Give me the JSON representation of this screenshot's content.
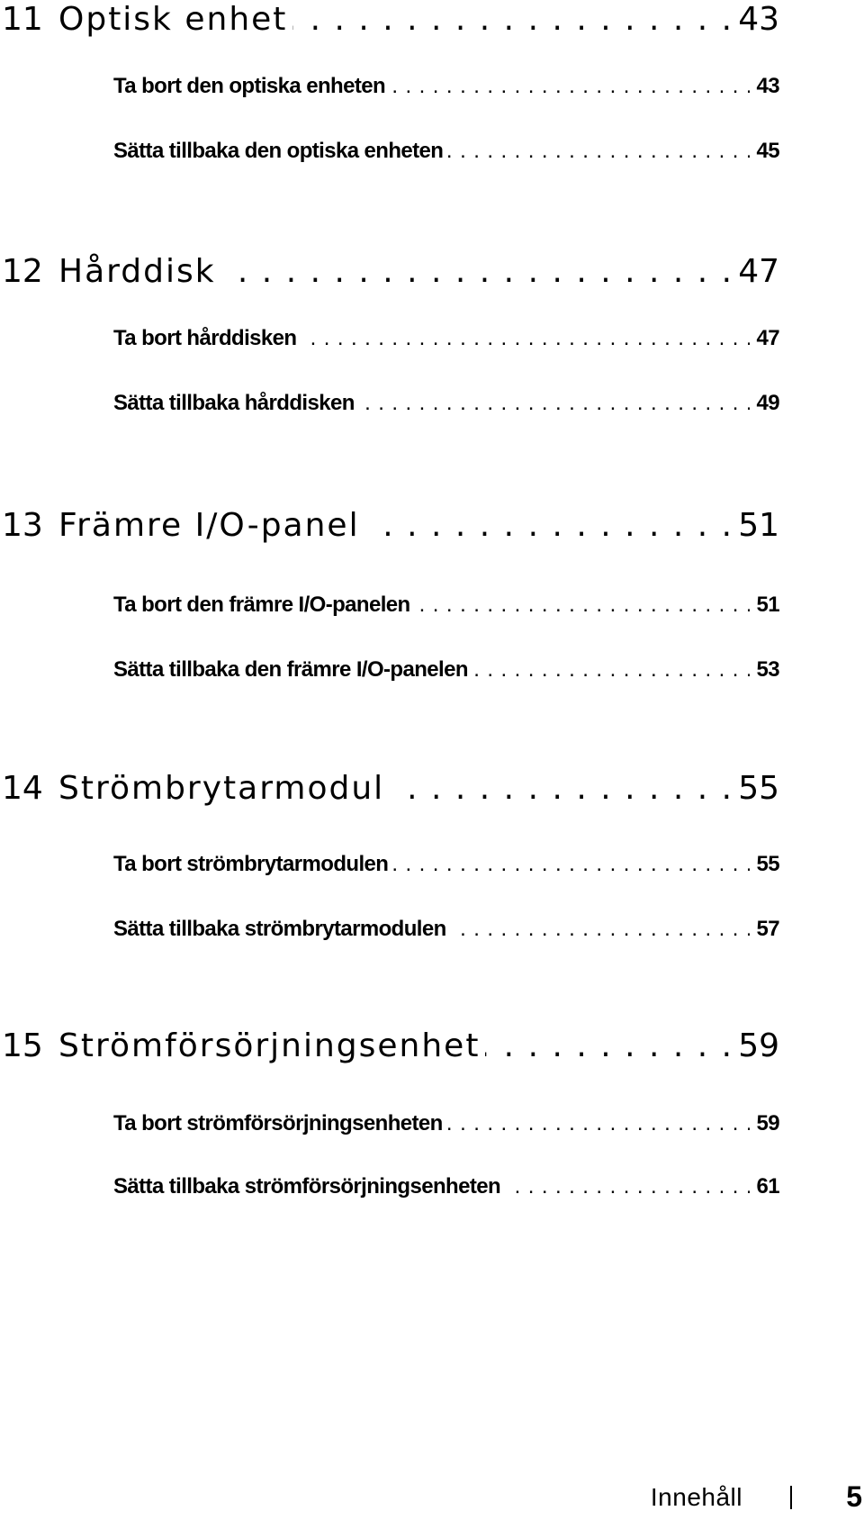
{
  "toc": {
    "chapters": [
      {
        "number": "11",
        "title": "Optisk enhet",
        "page": "43",
        "sections": [
          {
            "title": "Ta bort den optiska enheten",
            "page": "43"
          },
          {
            "title": "Sätta tillbaka den optiska enheten",
            "page": "45"
          }
        ]
      },
      {
        "number": "12",
        "title": "Hårddisk",
        "page": "47",
        "sections": [
          {
            "title": "Ta bort hårddisken",
            "page": "47"
          },
          {
            "title": "Sätta tillbaka hårddisken",
            "page": "49"
          }
        ]
      },
      {
        "number": "13",
        "title": "Främre I/O-panel",
        "page": "51",
        "sections": [
          {
            "title": "Ta bort den främre I/O-panelen",
            "page": "51"
          },
          {
            "title": "Sätta tillbaka den främre I/O-panelen",
            "page": "53"
          }
        ]
      },
      {
        "number": "14",
        "title": "Strömbrytarmodul",
        "page": "55",
        "sections": [
          {
            "title": "Ta bort strömbrytarmodulen",
            "page": "55"
          },
          {
            "title": "Sätta tillbaka strömbrytarmodulen",
            "page": "57"
          }
        ]
      },
      {
        "number": "15",
        "title": "Strömförsörjningsenhet",
        "page": "59",
        "sections": [
          {
            "title": "Ta bort strömförsörjningsenheten",
            "page": "59"
          },
          {
            "title": "Sätta tillbaka strömförsörjningsenheten",
            "page": "61"
          }
        ]
      }
    ]
  },
  "footer": {
    "label": "Innehåll",
    "page_number": "5"
  }
}
